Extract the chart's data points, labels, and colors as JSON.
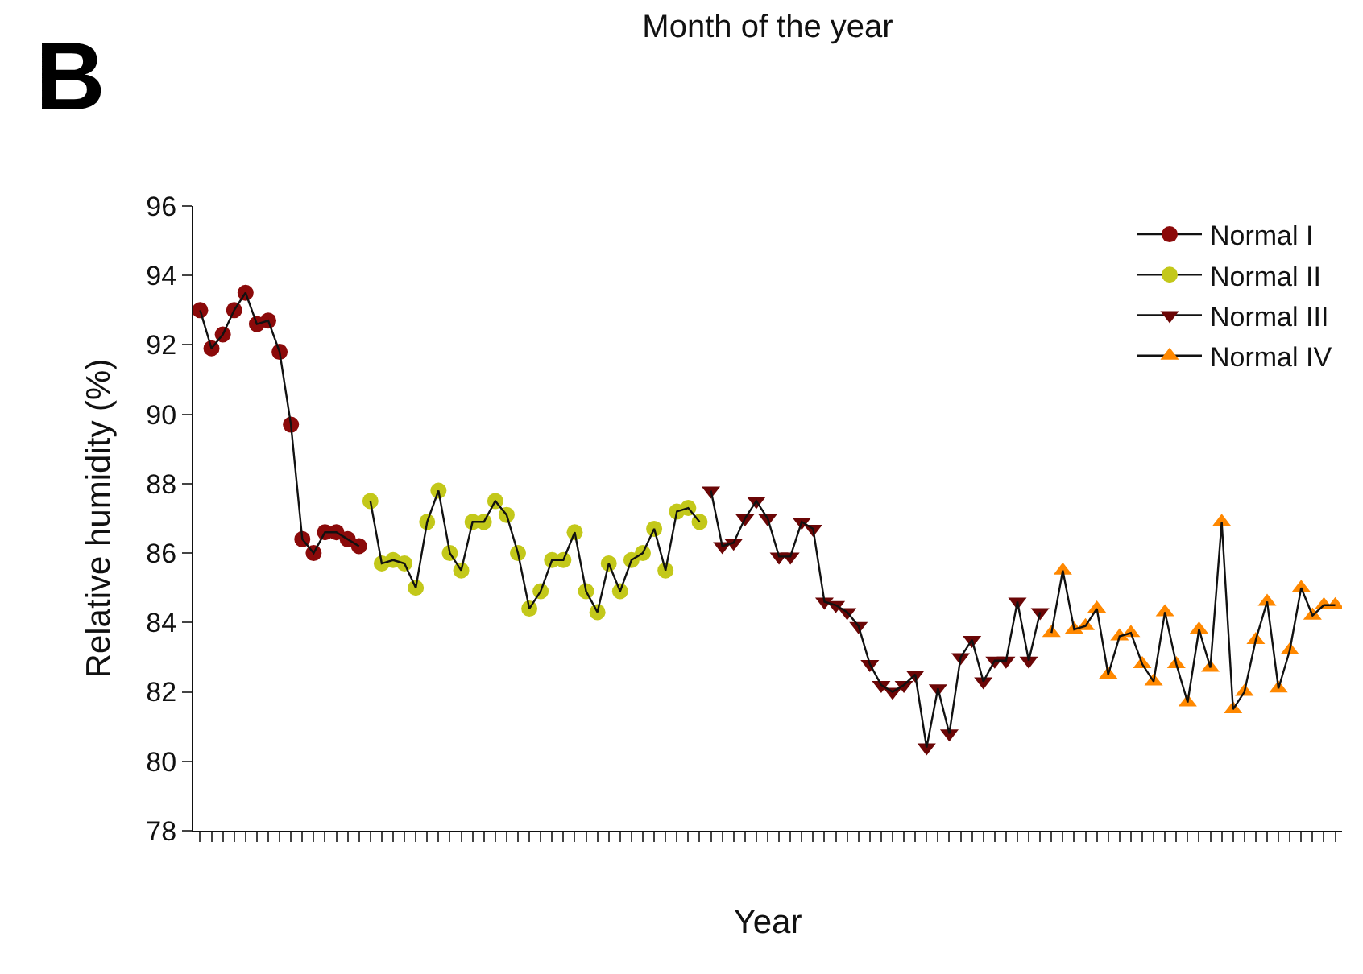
{
  "chart_data": {
    "type": "line",
    "title": "Month of the year",
    "xlabel": "Year",
    "ylabel": "Relative humidity (%)",
    "annotations": [
      "B"
    ],
    "categories": [
      null,
      null,
      null,
      null,
      null,
      null,
      null,
      null,
      null,
      null,
      null,
      null,
      null,
      null,
      null,
      null,
      null,
      null,
      null,
      null,
      null,
      null,
      null,
      null,
      null,
      null,
      null,
      null,
      null,
      null,
      null,
      null,
      null,
      null,
      null,
      null,
      null,
      null,
      null,
      null,
      null,
      null,
      null,
      null,
      null,
      null,
      null,
      null,
      null,
      null,
      null,
      null,
      null,
      null,
      null,
      null,
      null,
      null,
      null,
      null,
      null,
      null,
      null,
      null,
      null,
      null,
      null,
      null,
      null,
      null,
      null,
      null,
      null,
      null,
      null,
      null,
      null,
      null,
      null,
      null,
      null,
      null,
      null,
      null,
      null,
      null,
      null,
      null,
      null,
      null,
      null,
      null,
      null,
      null,
      null,
      null,
      null,
      null,
      null,
      null,
      null
    ],
    "ylim": [
      78,
      96
    ],
    "yticks": [
      78,
      80,
      82,
      84,
      86,
      88,
      90,
      92,
      94,
      96
    ],
    "legend": "top right",
    "grid": false,
    "series": [
      {
        "name": "Normal I",
        "color": "#8b0a0a",
        "marker": "circle",
        "values": [
          93.0,
          91.9,
          92.3,
          93.0,
          93.5,
          92.6,
          92.7,
          91.8,
          89.7,
          86.4,
          86.0,
          86.6,
          86.6,
          86.4,
          86.2,
          null,
          null,
          null,
          null,
          null,
          null,
          null,
          null,
          null,
          null,
          null,
          null,
          null,
          null,
          null,
          null,
          null,
          null,
          null,
          null,
          null,
          null,
          null,
          null,
          null,
          null,
          null,
          null,
          null,
          null,
          null,
          null,
          null,
          null,
          null,
          null,
          null,
          null,
          null,
          null,
          null,
          null,
          null,
          null,
          null,
          null,
          null,
          null,
          null,
          null,
          null,
          null,
          null,
          null,
          null,
          null,
          null,
          null,
          null,
          null,
          null,
          null,
          null,
          null,
          null,
          null,
          null,
          null,
          null,
          null,
          null,
          null,
          null,
          null,
          null,
          null,
          null,
          null,
          null,
          null,
          null,
          null,
          null,
          null,
          null,
          null
        ]
      },
      {
        "name": "Normal II",
        "color": "#c3c81a",
        "marker": "circle",
        "values": [
          null,
          null,
          null,
          null,
          null,
          null,
          null,
          null,
          null,
          null,
          null,
          null,
          null,
          null,
          null,
          87.5,
          85.7,
          85.8,
          85.7,
          85.0,
          86.9,
          87.8,
          86.0,
          85.5,
          86.9,
          86.9,
          87.5,
          87.1,
          86.0,
          84.4,
          84.9,
          85.8,
          85.8,
          86.6,
          84.9,
          84.3,
          85.7,
          84.9,
          85.8,
          86.0,
          86.7,
          85.5,
          87.2,
          87.3,
          86.9,
          null,
          null,
          null,
          null,
          null,
          null,
          null,
          null,
          null,
          null,
          null,
          null,
          null,
          null,
          null,
          null,
          null,
          null,
          null,
          null,
          null,
          null,
          null,
          null,
          null,
          null,
          null,
          null,
          null,
          null,
          null,
          null,
          null,
          null,
          null,
          null,
          null,
          null,
          null,
          null,
          null,
          null,
          null,
          null,
          null,
          null,
          null,
          null,
          null,
          null,
          null,
          null,
          null,
          null,
          null,
          null
        ]
      },
      {
        "name": "Normal III",
        "color": "#6b0606",
        "marker": "triangle-down",
        "values": [
          null,
          null,
          null,
          null,
          null,
          null,
          null,
          null,
          null,
          null,
          null,
          null,
          null,
          null,
          null,
          null,
          null,
          null,
          null,
          null,
          null,
          null,
          null,
          null,
          null,
          null,
          null,
          null,
          null,
          null,
          null,
          null,
          null,
          null,
          null,
          null,
          null,
          null,
          null,
          null,
          null,
          null,
          null,
          null,
          null,
          87.8,
          86.2,
          86.3,
          87.0,
          87.5,
          87.0,
          85.9,
          85.9,
          86.9,
          86.7,
          84.6,
          84.5,
          84.3,
          83.9,
          82.8,
          82.2,
          82.0,
          82.2,
          82.5,
          80.4,
          82.1,
          80.8,
          83.0,
          83.5,
          82.3,
          82.9,
          82.9,
          84.6,
          82.9,
          84.3,
          null,
          null,
          null,
          null,
          null,
          null,
          null,
          null,
          null,
          null,
          null,
          null,
          null,
          null,
          null,
          null,
          null,
          null,
          null,
          null,
          null,
          null,
          null,
          null,
          null,
          null
        ]
      },
      {
        "name": "Normal IV",
        "color": "#ff8800",
        "marker": "triangle",
        "values": [
          null,
          null,
          null,
          null,
          null,
          null,
          null,
          null,
          null,
          null,
          null,
          null,
          null,
          null,
          null,
          null,
          null,
          null,
          null,
          null,
          null,
          null,
          null,
          null,
          null,
          null,
          null,
          null,
          null,
          null,
          null,
          null,
          null,
          null,
          null,
          null,
          null,
          null,
          null,
          null,
          null,
          null,
          null,
          null,
          null,
          null,
          null,
          null,
          null,
          null,
          null,
          null,
          null,
          null,
          null,
          null,
          null,
          null,
          null,
          null,
          null,
          null,
          null,
          null,
          null,
          null,
          null,
          null,
          null,
          null,
          null,
          null,
          null,
          null,
          null,
          83.7,
          85.5,
          83.8,
          83.9,
          84.4,
          82.5,
          83.6,
          83.7,
          82.8,
          82.3,
          84.3,
          82.8,
          81.7,
          83.8,
          82.7,
          86.9,
          81.5,
          82.0,
          83.5,
          84.6,
          82.1,
          83.2,
          85.0,
          84.2,
          84.5,
          84.5
        ]
      }
    ]
  }
}
